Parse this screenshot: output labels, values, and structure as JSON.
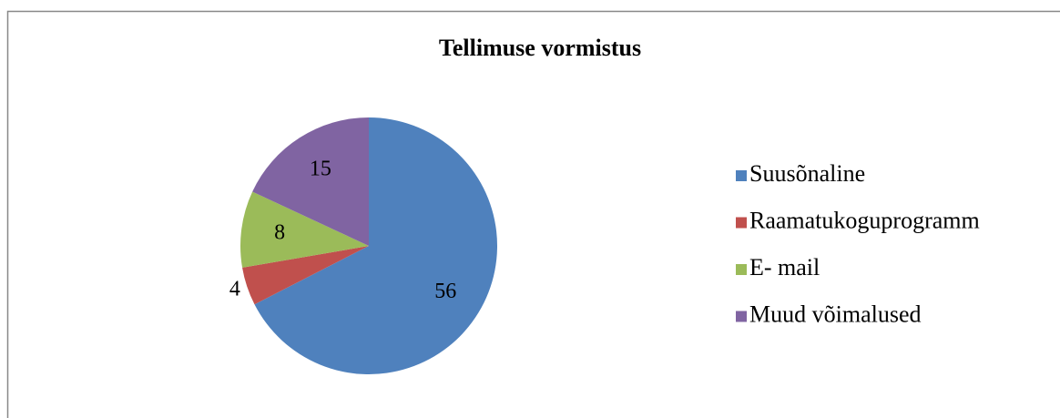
{
  "chart_data": {
    "type": "pie",
    "title": "Tellimuse vormistus",
    "categories": [
      "Suusõnaline",
      "Raamatukoguprogramm",
      "E- mail",
      "Muud võimalused"
    ],
    "values": [
      56,
      4,
      8,
      15
    ],
    "colors": [
      "#4f81bd",
      "#c0504d",
      "#9bbb59",
      "#8064a2"
    ],
    "legend": "right"
  }
}
